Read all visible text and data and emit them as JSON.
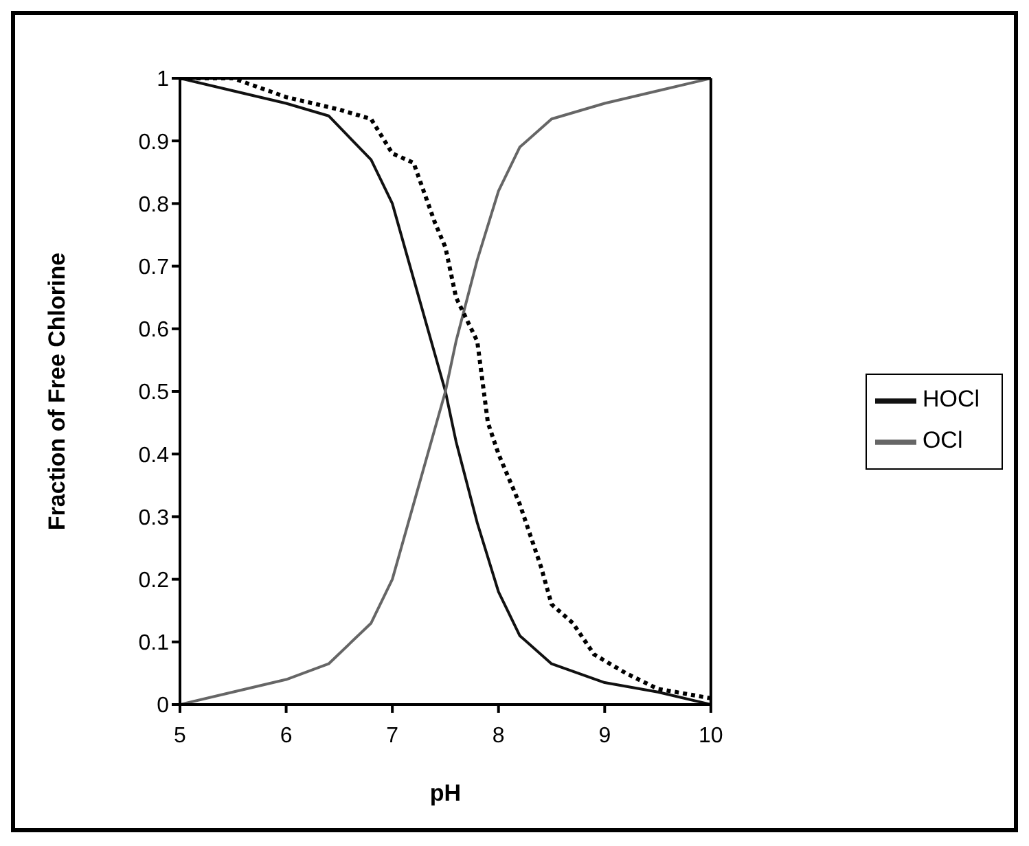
{
  "chart_data": {
    "type": "line",
    "xlabel": "pH",
    "ylabel": "Fraction of Free Chlorine",
    "xlim": [
      5,
      10
    ],
    "xticks": [
      5,
      6,
      7,
      8,
      9,
      10
    ],
    "ylim": [
      0,
      1
    ],
    "yticks": [
      0,
      0.1,
      0.2,
      0.3,
      0.4,
      0.5,
      0.6,
      0.7,
      0.8,
      0.9,
      1
    ],
    "legend": "right",
    "marker": "none",
    "series": [
      {
        "name": "HOCl",
        "color": "#111111",
        "x": [
          5,
          5.5,
          6,
          6.4,
          6.8,
          7,
          7.2,
          7.4,
          7.5,
          7.6,
          7.8,
          8,
          8.2,
          8.5,
          9,
          9.5,
          10
        ],
        "values": [
          1,
          0.98,
          0.96,
          0.94,
          0.87,
          0.8,
          0.68,
          0.56,
          0.5,
          0.42,
          0.29,
          0.18,
          0.11,
          0.065,
          0.035,
          0.02,
          0
        ]
      },
      {
        "name": "OCl",
        "color": "#666666",
        "x": [
          5,
          5.5,
          6,
          6.4,
          6.8,
          7,
          7.2,
          7.4,
          7.5,
          7.6,
          7.8,
          8,
          8.2,
          8.5,
          9,
          9.5,
          10
        ],
        "values": [
          0,
          0.02,
          0.04,
          0.065,
          0.13,
          0.2,
          0.32,
          0.44,
          0.5,
          0.58,
          0.71,
          0.82,
          0.89,
          0.935,
          0.96,
          0.98,
          1
        ]
      },
      {
        "color": "#000000",
        "line_style": "dotted",
        "x": [
          5,
          5.5,
          6,
          6.5,
          6.8,
          7,
          7.2,
          7.4,
          7.5,
          7.6,
          7.8,
          7.9,
          8,
          8.2,
          8.4,
          8.5,
          8.7,
          8.9,
          9.2,
          9.5,
          10
        ],
        "values": [
          1,
          1,
          0.97,
          0.95,
          0.935,
          0.88,
          0.865,
          0.77,
          0.73,
          0.65,
          0.58,
          0.45,
          0.4,
          0.32,
          0.22,
          0.16,
          0.13,
          0.08,
          0.05,
          0.025,
          0.01
        ]
      }
    ]
  }
}
